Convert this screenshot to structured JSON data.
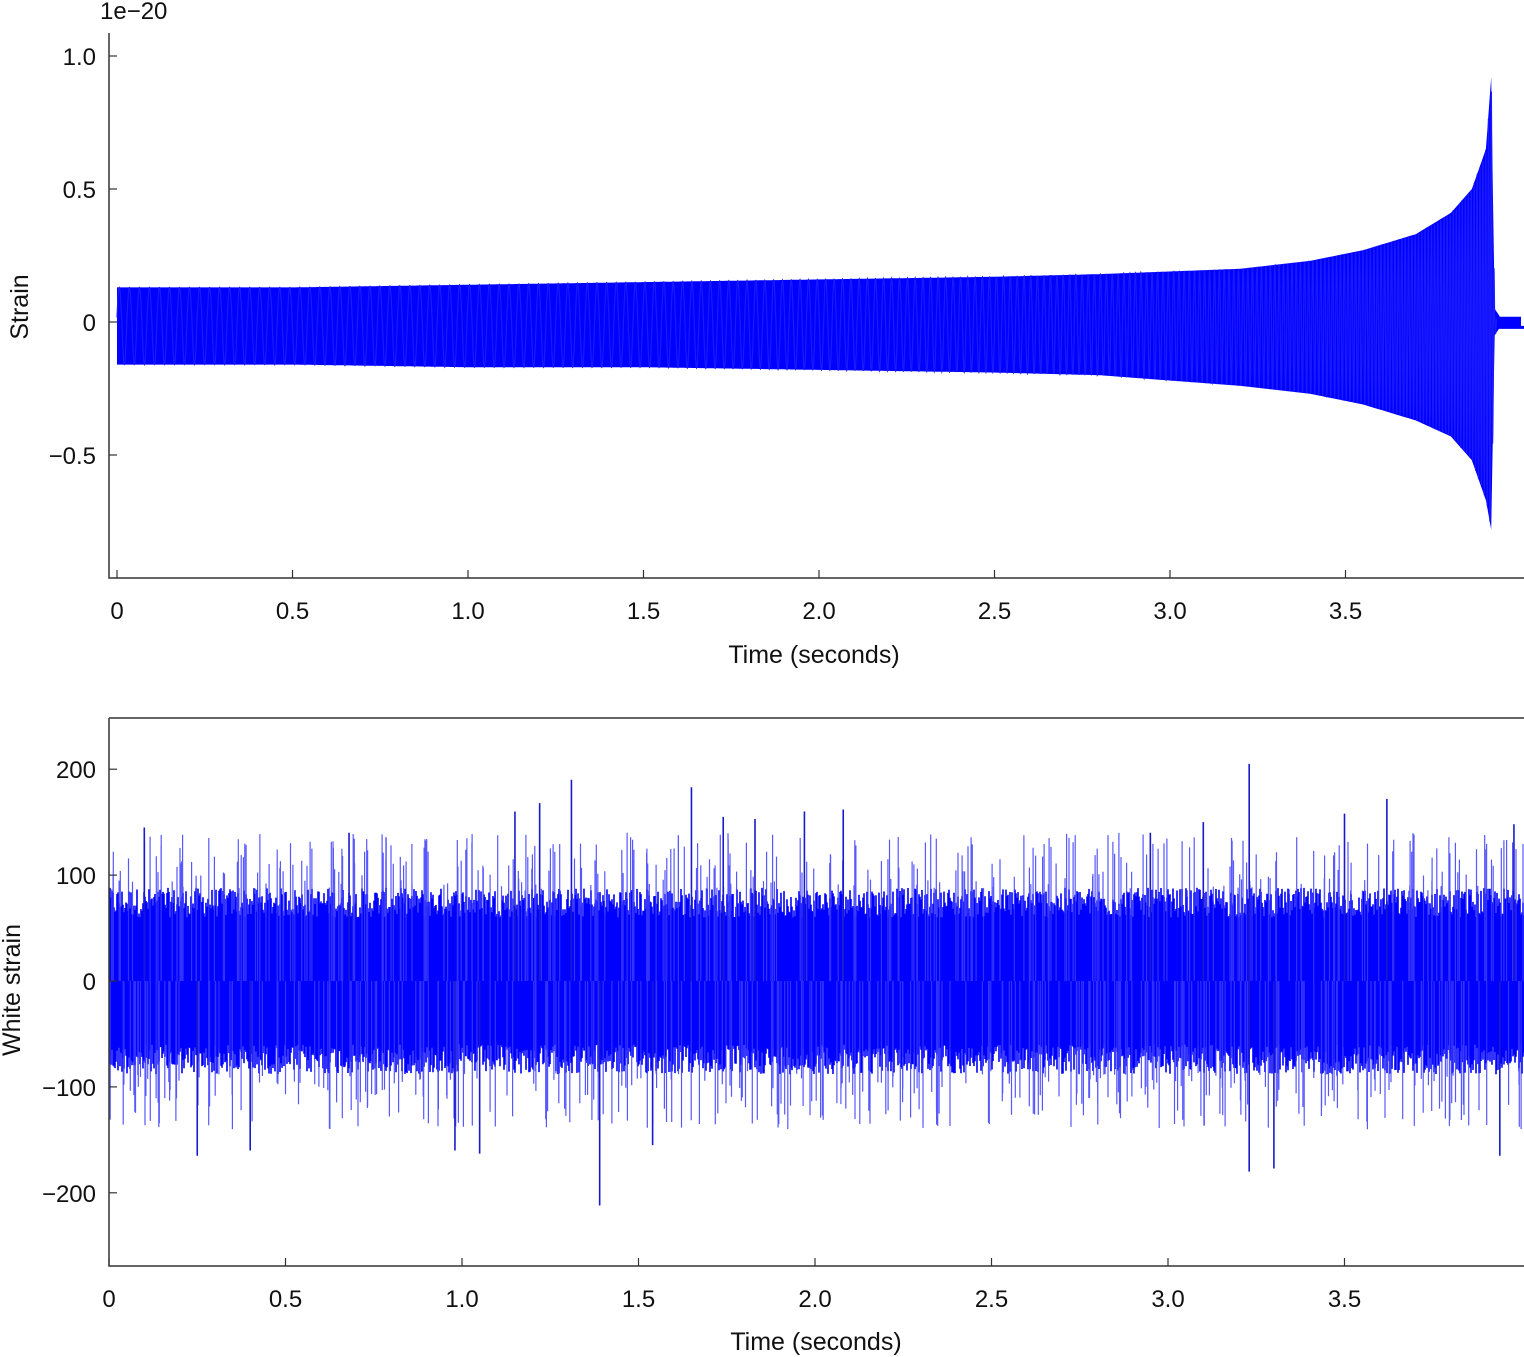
{
  "chart_data": [
    {
      "type": "line",
      "panel": "top",
      "scale_label": "1e−20",
      "xlabel": "Time (seconds)",
      "ylabel": "Strain",
      "xlim": [
        0,
        4.0
      ],
      "ylim": [
        -0.95,
        1.1
      ],
      "x_ticks": [
        0,
        0.5,
        1.0,
        1.5,
        2.0,
        2.5,
        3.0,
        3.5
      ],
      "x_tick_labels": [
        "0",
        "0.5",
        "1.0",
        "1.5",
        "2.0",
        "2.5",
        "3.0",
        "3.5"
      ],
      "y_ticks": [
        -0.5,
        0,
        0.5,
        1.0
      ],
      "y_tick_labels": [
        "−0.5",
        "0",
        "0.5",
        "1.0"
      ],
      "line_color": "#0000ff",
      "grid": false,
      "series": [
        {
          "envelope": {
            "x": [
              0,
              0.5,
              1.0,
              1.5,
              2.0,
              2.5,
              2.8,
              3.0,
              3.2,
              3.4,
              3.55,
              3.7,
              3.8,
              3.86,
              3.9,
              3.915,
              3.925,
              3.94,
              4.0
            ],
            "upper": [
              0.13,
              0.13,
              0.14,
              0.15,
              0.16,
              0.17,
              0.18,
              0.19,
              0.2,
              0.23,
              0.27,
              0.33,
              0.41,
              0.5,
              0.65,
              0.92,
              0.05,
              0.02,
              0.02
            ],
            "lower": [
              -0.16,
              -0.16,
              -0.17,
              -0.17,
              -0.18,
              -0.19,
              -0.2,
              -0.22,
              -0.24,
              -0.27,
              -0.31,
              -0.37,
              -0.43,
              -0.52,
              -0.67,
              -0.78,
              -0.05,
              -0.02,
              -0.02
            ]
          }
        }
      ]
    },
    {
      "type": "line",
      "panel": "bottom",
      "xlabel": "Time (seconds)",
      "ylabel": "White strain",
      "xlim": [
        0,
        4.0
      ],
      "ylim": [
        -255,
        245
      ],
      "x_ticks": [
        0,
        0.5,
        1.0,
        1.5,
        2.0,
        2.5,
        3.0,
        3.5
      ],
      "x_tick_labels": [
        "0",
        "0.5",
        "1.0",
        "1.5",
        "2.0",
        "2.5",
        "3.0",
        "3.5"
      ],
      "y_ticks": [
        -200,
        -100,
        0,
        100,
        200
      ],
      "y_tick_labels": [
        "−200",
        "−100",
        "0",
        "100",
        "200"
      ],
      "line_color": "#0000ff",
      "grid": false,
      "series": [
        {
          "noise_band": [
            -80,
            80
          ],
          "spikes": [
            {
              "x": 0.1,
              "y": 145
            },
            {
              "x": 0.25,
              "y": -165
            },
            {
              "x": 0.4,
              "y": -160
            },
            {
              "x": 0.68,
              "y": 140
            },
            {
              "x": 0.98,
              "y": -160
            },
            {
              "x": 1.05,
              "y": -163
            },
            {
              "x": 1.15,
              "y": 160
            },
            {
              "x": 1.22,
              "y": 168
            },
            {
              "x": 1.31,
              "y": 190
            },
            {
              "x": 1.39,
              "y": -212
            },
            {
              "x": 1.54,
              "y": -155
            },
            {
              "x": 1.65,
              "y": 183
            },
            {
              "x": 1.74,
              "y": 155
            },
            {
              "x": 1.83,
              "y": 153
            },
            {
              "x": 1.97,
              "y": 160
            },
            {
              "x": 2.08,
              "y": 162
            },
            {
              "x": 2.95,
              "y": 140
            },
            {
              "x": 3.1,
              "y": 150
            },
            {
              "x": 3.23,
              "y": 205
            },
            {
              "x": 3.23,
              "y": -180
            },
            {
              "x": 3.3,
              "y": -177
            },
            {
              "x": 3.5,
              "y": 158
            },
            {
              "x": 3.62,
              "y": 172
            },
            {
              "x": 3.94,
              "y": -165
            },
            {
              "x": 3.98,
              "y": 148
            }
          ]
        }
      ]
    }
  ]
}
